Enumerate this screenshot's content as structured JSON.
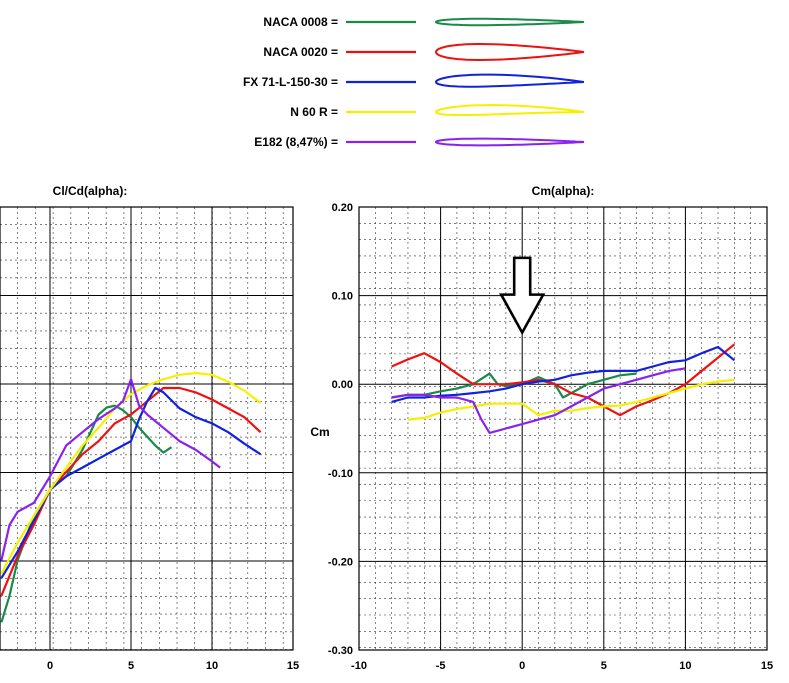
{
  "legend": {
    "items": [
      {
        "label": "NACA 0008 =",
        "color": "#1a8a4a",
        "thickness": 0.08,
        "camber": 0.0
      },
      {
        "label": "NACA 0020 =",
        "color": "#ee1111",
        "thickness": 0.2,
        "camber": 0.0
      },
      {
        "label": "FX 71-L-150-30 =",
        "color": "#1122dd",
        "thickness": 0.15,
        "camber": 0.02
      },
      {
        "label": "N 60 R =",
        "color": "#f5f000",
        "thickness": 0.12,
        "camber": 0.03
      },
      {
        "label": "E182 (8,47%) =",
        "color": "#8a22ee",
        "thickness": 0.085,
        "camber": 0.0
      }
    ]
  },
  "chart_data": [
    {
      "type": "line",
      "title": "Cl/Cd(alpha):",
      "xlim": [
        -3,
        15
      ],
      "ylim": [
        -2,
        2
      ],
      "x_ticks": [
        0,
        5,
        10,
        15
      ],
      "grid": true,
      "series": [
        {
          "name": "NACA 0008",
          "color": "#1a8a4a",
          "x": [
            -3,
            -2.5,
            -2,
            -1.5,
            -1,
            0,
            1,
            2,
            2.5,
            3,
            3.5,
            4,
            4.5,
            5,
            5.5,
            6,
            6.5,
            7,
            7.5
          ],
          "y": [
            -1.7,
            -1.4,
            -1.0,
            -0.75,
            -0.5,
            -0.2,
            -0.05,
            0.25,
            0.45,
            0.65,
            0.73,
            0.75,
            0.7,
            0.62,
            0.5,
            0.4,
            0.3,
            0.22,
            0.28
          ]
        },
        {
          "name": "NACA 0020",
          "color": "#ee1111",
          "x": [
            -3,
            -2,
            -1,
            0,
            1,
            2,
            3,
            4,
            5,
            6,
            7,
            8,
            9,
            10,
            11,
            12,
            13
          ],
          "y": [
            -1.4,
            -0.95,
            -0.6,
            -0.2,
            0.0,
            0.2,
            0.35,
            0.55,
            0.65,
            0.8,
            0.95,
            0.95,
            0.9,
            0.82,
            0.72,
            0.62,
            0.45
          ]
        },
        {
          "name": "FX 71-L-150-30",
          "color": "#1122dd",
          "x": [
            -3,
            -2,
            -1,
            0,
            1,
            2,
            3,
            4,
            5,
            5.5,
            6,
            6.5,
            7,
            8,
            9,
            10,
            11,
            12,
            13
          ],
          "y": [
            -1.2,
            -0.9,
            -0.55,
            -0.2,
            -0.05,
            0.05,
            0.15,
            0.25,
            0.35,
            0.6,
            0.8,
            0.95,
            0.9,
            0.72,
            0.62,
            0.55,
            0.45,
            0.32,
            0.2
          ]
        },
        {
          "name": "N 60 R",
          "color": "#f5f000",
          "x": [
            -3,
            -2,
            -1,
            0,
            1,
            2,
            3,
            4,
            5,
            6,
            7,
            8,
            9,
            10,
            11,
            12,
            13
          ],
          "y": [
            -1.15,
            -0.8,
            -0.5,
            -0.2,
            0.05,
            0.3,
            0.5,
            0.72,
            0.88,
            0.98,
            1.05,
            1.1,
            1.12,
            1.1,
            1.02,
            0.92,
            0.78
          ]
        },
        {
          "name": "E182",
          "color": "#8a22ee",
          "x": [
            -3,
            -2.5,
            -2,
            -1,
            0,
            1,
            2,
            3,
            4,
            4.5,
            5,
            5.5,
            6,
            7,
            8,
            9,
            10,
            10.5
          ],
          "y": [
            -1.0,
            -0.6,
            -0.45,
            -0.35,
            -0.05,
            0.3,
            0.45,
            0.6,
            0.72,
            0.8,
            1.05,
            0.75,
            0.65,
            0.5,
            0.35,
            0.25,
            0.12,
            0.05
          ]
        }
      ]
    },
    {
      "type": "line",
      "title": "Cm(alpha):",
      "ylabel": "Cm",
      "xlim": [
        -10,
        15
      ],
      "ylim": [
        -0.3,
        0.2
      ],
      "x_ticks": [
        -10,
        -5,
        0,
        5,
        10,
        15
      ],
      "y_ticks": [
        0.2,
        0.1,
        0.0,
        -0.1,
        -0.2,
        -0.3
      ],
      "x_tick_labels": [
        "-10",
        "-5",
        "0",
        "5",
        "10",
        "15"
      ],
      "y_tick_labels": [
        "0.20",
        "0.10",
        "0.00",
        "-0.10",
        "-0.20",
        "-0.30"
      ],
      "grid": true,
      "annotation": {
        "type": "arrow-down",
        "x": 0,
        "y_top": 0.12,
        "y_bottom": 0.03
      },
      "series": [
        {
          "name": "NACA 0008",
          "color": "#1a8a4a",
          "x": [
            -8,
            -7,
            -6,
            -5,
            -4,
            -3,
            -2,
            -1.5,
            -1,
            0,
            1,
            2,
            2.5,
            3,
            4,
            5,
            6,
            7
          ],
          "y": [
            -0.015,
            -0.012,
            -0.012,
            -0.008,
            -0.005,
            0.0,
            0.012,
            0.0,
            -0.002,
            0.0,
            0.008,
            0.0,
            -0.015,
            -0.01,
            0.0,
            0.005,
            0.01,
            0.012
          ]
        },
        {
          "name": "NACA 0020",
          "color": "#ee1111",
          "x": [
            -8,
            -7,
            -6,
            -5,
            -4,
            -3,
            -2,
            -1,
            0,
            1,
            2,
            3,
            4,
            5,
            6,
            7,
            8,
            9,
            10,
            11,
            12,
            13
          ],
          "y": [
            0.02,
            0.028,
            0.035,
            0.025,
            0.012,
            0.0,
            0.0,
            0.0,
            0.002,
            0.005,
            0.0,
            -0.01,
            -0.015,
            -0.025,
            -0.035,
            -0.025,
            -0.018,
            -0.01,
            0.0,
            0.015,
            0.03,
            0.045
          ]
        },
        {
          "name": "FX 71-L-150-30",
          "color": "#1122dd",
          "x": [
            -8,
            -7,
            -6,
            -5,
            -4,
            -3,
            -2,
            -1,
            0,
            1,
            2,
            3,
            4,
            5,
            6,
            7,
            8,
            9,
            10,
            11,
            12,
            13
          ],
          "y": [
            -0.02,
            -0.015,
            -0.015,
            -0.013,
            -0.012,
            -0.01,
            -0.008,
            -0.005,
            0.0,
            0.003,
            0.005,
            0.01,
            0.013,
            0.015,
            0.015,
            0.015,
            0.02,
            0.025,
            0.027,
            0.035,
            0.042,
            0.027
          ]
        },
        {
          "name": "N 60 R",
          "color": "#f5f000",
          "x": [
            -7,
            -6,
            -5,
            -4,
            -3,
            -2,
            -1,
            0,
            1,
            2,
            3,
            4,
            5,
            6,
            7,
            8,
            9,
            10,
            11,
            12,
            13
          ],
          "y": [
            -0.04,
            -0.038,
            -0.032,
            -0.028,
            -0.025,
            -0.022,
            -0.022,
            -0.022,
            -0.035,
            -0.03,
            -0.03,
            -0.027,
            -0.025,
            -0.024,
            -0.02,
            -0.015,
            -0.01,
            -0.005,
            0.0,
            0.003,
            0.005
          ]
        },
        {
          "name": "E182",
          "color": "#8a22ee",
          "x": [
            -8,
            -7,
            -6,
            -5,
            -4,
            -3,
            -2.5,
            -2,
            -1,
            0,
            1,
            2,
            3,
            4,
            5,
            6,
            7,
            8,
            9,
            10
          ],
          "y": [
            -0.015,
            -0.012,
            -0.012,
            -0.015,
            -0.015,
            -0.02,
            -0.04,
            -0.055,
            -0.05,
            -0.045,
            -0.04,
            -0.035,
            -0.025,
            -0.015,
            -0.005,
            0.0,
            0.005,
            0.01,
            0.015,
            0.018
          ]
        }
      ]
    }
  ]
}
